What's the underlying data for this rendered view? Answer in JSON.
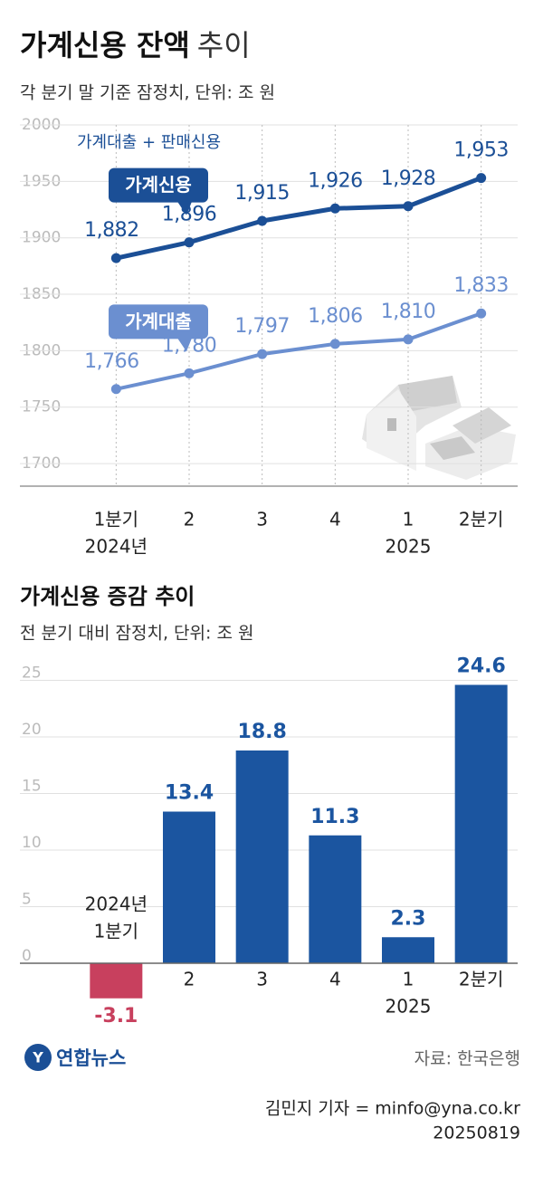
{
  "chart_data": [
    {
      "type": "line",
      "title": "가계신용 잔액",
      "title_suffix": "추이",
      "subtitle": "각 분기 말 기준 잠정치, 단위: 조 원",
      "annotation": "가계대출 + 판매신용",
      "categories": [
        [
          "1분기",
          "2024년"
        ],
        [
          "2"
        ],
        [
          "3"
        ],
        [
          "4"
        ],
        [
          "1",
          "2025"
        ],
        [
          "2분기"
        ]
      ],
      "series": [
        {
          "name": "가계신용",
          "color": "#1b4f96",
          "values": [
            1882,
            1896,
            1915,
            1926,
            1928,
            1953
          ],
          "value_labels": [
            "1,882",
            "1,896",
            "1,915",
            "1,926",
            "1,928",
            "1,953"
          ]
        },
        {
          "name": "가계대출",
          "color": "#6b8fd0",
          "values": [
            1766,
            1780,
            1797,
            1806,
            1810,
            1833
          ],
          "value_labels": [
            "1,766",
            "1,780",
            "1,797",
            "1,806",
            "1,810",
            "1,833"
          ]
        }
      ],
      "ylim": [
        1680,
        2000
      ],
      "yticks": [
        1700,
        1750,
        1800,
        1850,
        1900,
        1950,
        2000
      ],
      "grid": true
    },
    {
      "type": "bar",
      "title": "가계신용 증감 추이",
      "subtitle": "전 분기 대비 잠정치, 단위: 조 원",
      "categories": [
        [
          "2024년",
          "1분기"
        ],
        [
          "2"
        ],
        [
          "3"
        ],
        [
          "4"
        ],
        [
          "1",
          "2025"
        ],
        [
          "2분기"
        ]
      ],
      "values": [
        -3.1,
        13.4,
        18.8,
        11.3,
        2.3,
        24.6
      ],
      "color": "#1b55a0",
      "negative_color": "#c8405e",
      "ylim": [
        -4,
        26
      ],
      "yticks": [
        0,
        5,
        10,
        15,
        20,
        25
      ],
      "grid": true
    }
  ],
  "footer": {
    "logo": "연합뉴스",
    "source": "자료: 한국은행",
    "credit": "김민지 기자 = minfo@yna.co.kr",
    "date": "20250819"
  }
}
